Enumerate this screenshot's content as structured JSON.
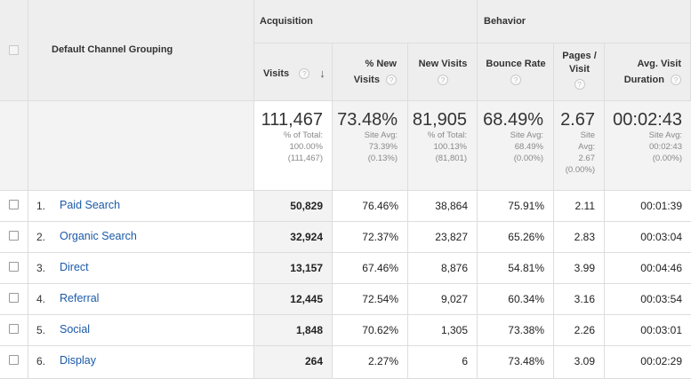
{
  "header": {
    "dimension": "Default Channel Grouping",
    "group_acquisition": "Acquisition",
    "group_behavior": "Behavior",
    "columns": {
      "visits": "Visits",
      "pct_new_visits": [
        "% New",
        "Visits"
      ],
      "new_visits": "New Visits",
      "bounce_rate": "Bounce Rate",
      "pages_visit": [
        "Pages /",
        "Visit"
      ],
      "avg_duration": [
        "Avg. Visit",
        "Duration"
      ]
    },
    "help_glyph": "?"
  },
  "summary": {
    "visits": {
      "value": "111,467",
      "l1": "% of Total:",
      "l2": "100.00%",
      "l3": "(111,467)"
    },
    "pct_new_visits": {
      "value": "73.48%",
      "l1": "Site Avg:",
      "l2": "73.39%",
      "l3": "(0.13%)"
    },
    "new_visits": {
      "value": "81,905",
      "l1": "% of Total:",
      "l2": "100.13%",
      "l3": "(81,801)"
    },
    "bounce_rate": {
      "value": "68.49%",
      "l1": "Site Avg:",
      "l2": "68.49%",
      "l3": "(0.00%)"
    },
    "pages_visit": {
      "value": "2.67",
      "l1": "Site",
      "l2": "Avg:",
      "l3": "2.67",
      "l4": "(0.00%)"
    },
    "avg_duration": {
      "value": "00:02:43",
      "l1": "Site Avg:",
      "l2": "00:02:43",
      "l3": "(0.00%)"
    }
  },
  "rows": [
    {
      "idx": "1.",
      "channel": "Paid Search",
      "visits": "50,829",
      "pct_new": "76.46%",
      "new_visits": "38,864",
      "bounce": "75.91%",
      "pages": "2.11",
      "duration": "00:01:39"
    },
    {
      "idx": "2.",
      "channel": "Organic Search",
      "visits": "32,924",
      "pct_new": "72.37%",
      "new_visits": "23,827",
      "bounce": "65.26%",
      "pages": "2.83",
      "duration": "00:03:04"
    },
    {
      "idx": "3.",
      "channel": "Direct",
      "visits": "13,157",
      "pct_new": "67.46%",
      "new_visits": "8,876",
      "bounce": "54.81%",
      "pages": "3.99",
      "duration": "00:04:46"
    },
    {
      "idx": "4.",
      "channel": "Referral",
      "visits": "12,445",
      "pct_new": "72.54%",
      "new_visits": "9,027",
      "bounce": "60.34%",
      "pages": "3.16",
      "duration": "00:03:54"
    },
    {
      "idx": "5.",
      "channel": "Social",
      "visits": "1,848",
      "pct_new": "70.62%",
      "new_visits": "1,305",
      "bounce": "73.38%",
      "pages": "2.26",
      "duration": "00:03:01"
    },
    {
      "idx": "6.",
      "channel": "Display",
      "visits": "264",
      "pct_new": "2.27%",
      "new_visits": "6",
      "bounce": "73.48%",
      "pages": "3.09",
      "duration": "00:02:29"
    }
  ]
}
